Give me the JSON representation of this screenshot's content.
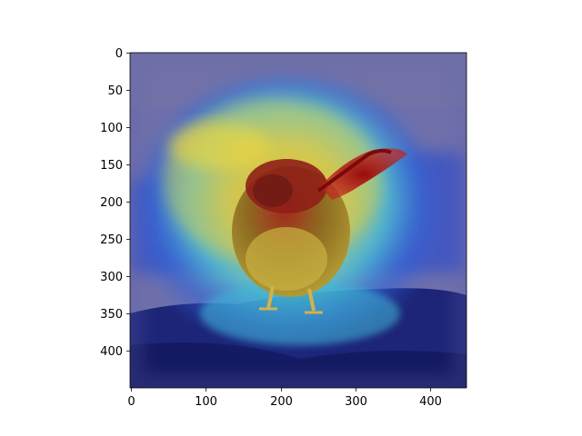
{
  "figure": {
    "x_ticks": [
      "0",
      "100",
      "200",
      "300",
      "400"
    ],
    "y_ticks": [
      "0",
      "50",
      "100",
      "150",
      "200",
      "250",
      "300",
      "350",
      "400"
    ]
  },
  "image": {
    "subject": "small bird standing on a rock, overlaid with a jet-colormap attention heatmap",
    "colors": {
      "background_purple": "#6e6ea8",
      "rock_navy": "#1a2070",
      "heat_red": "#b01818",
      "heat_yellow": "#e0d040",
      "heat_cyan": "#48d8e0",
      "heat_blue": "#2850d8"
    }
  }
}
